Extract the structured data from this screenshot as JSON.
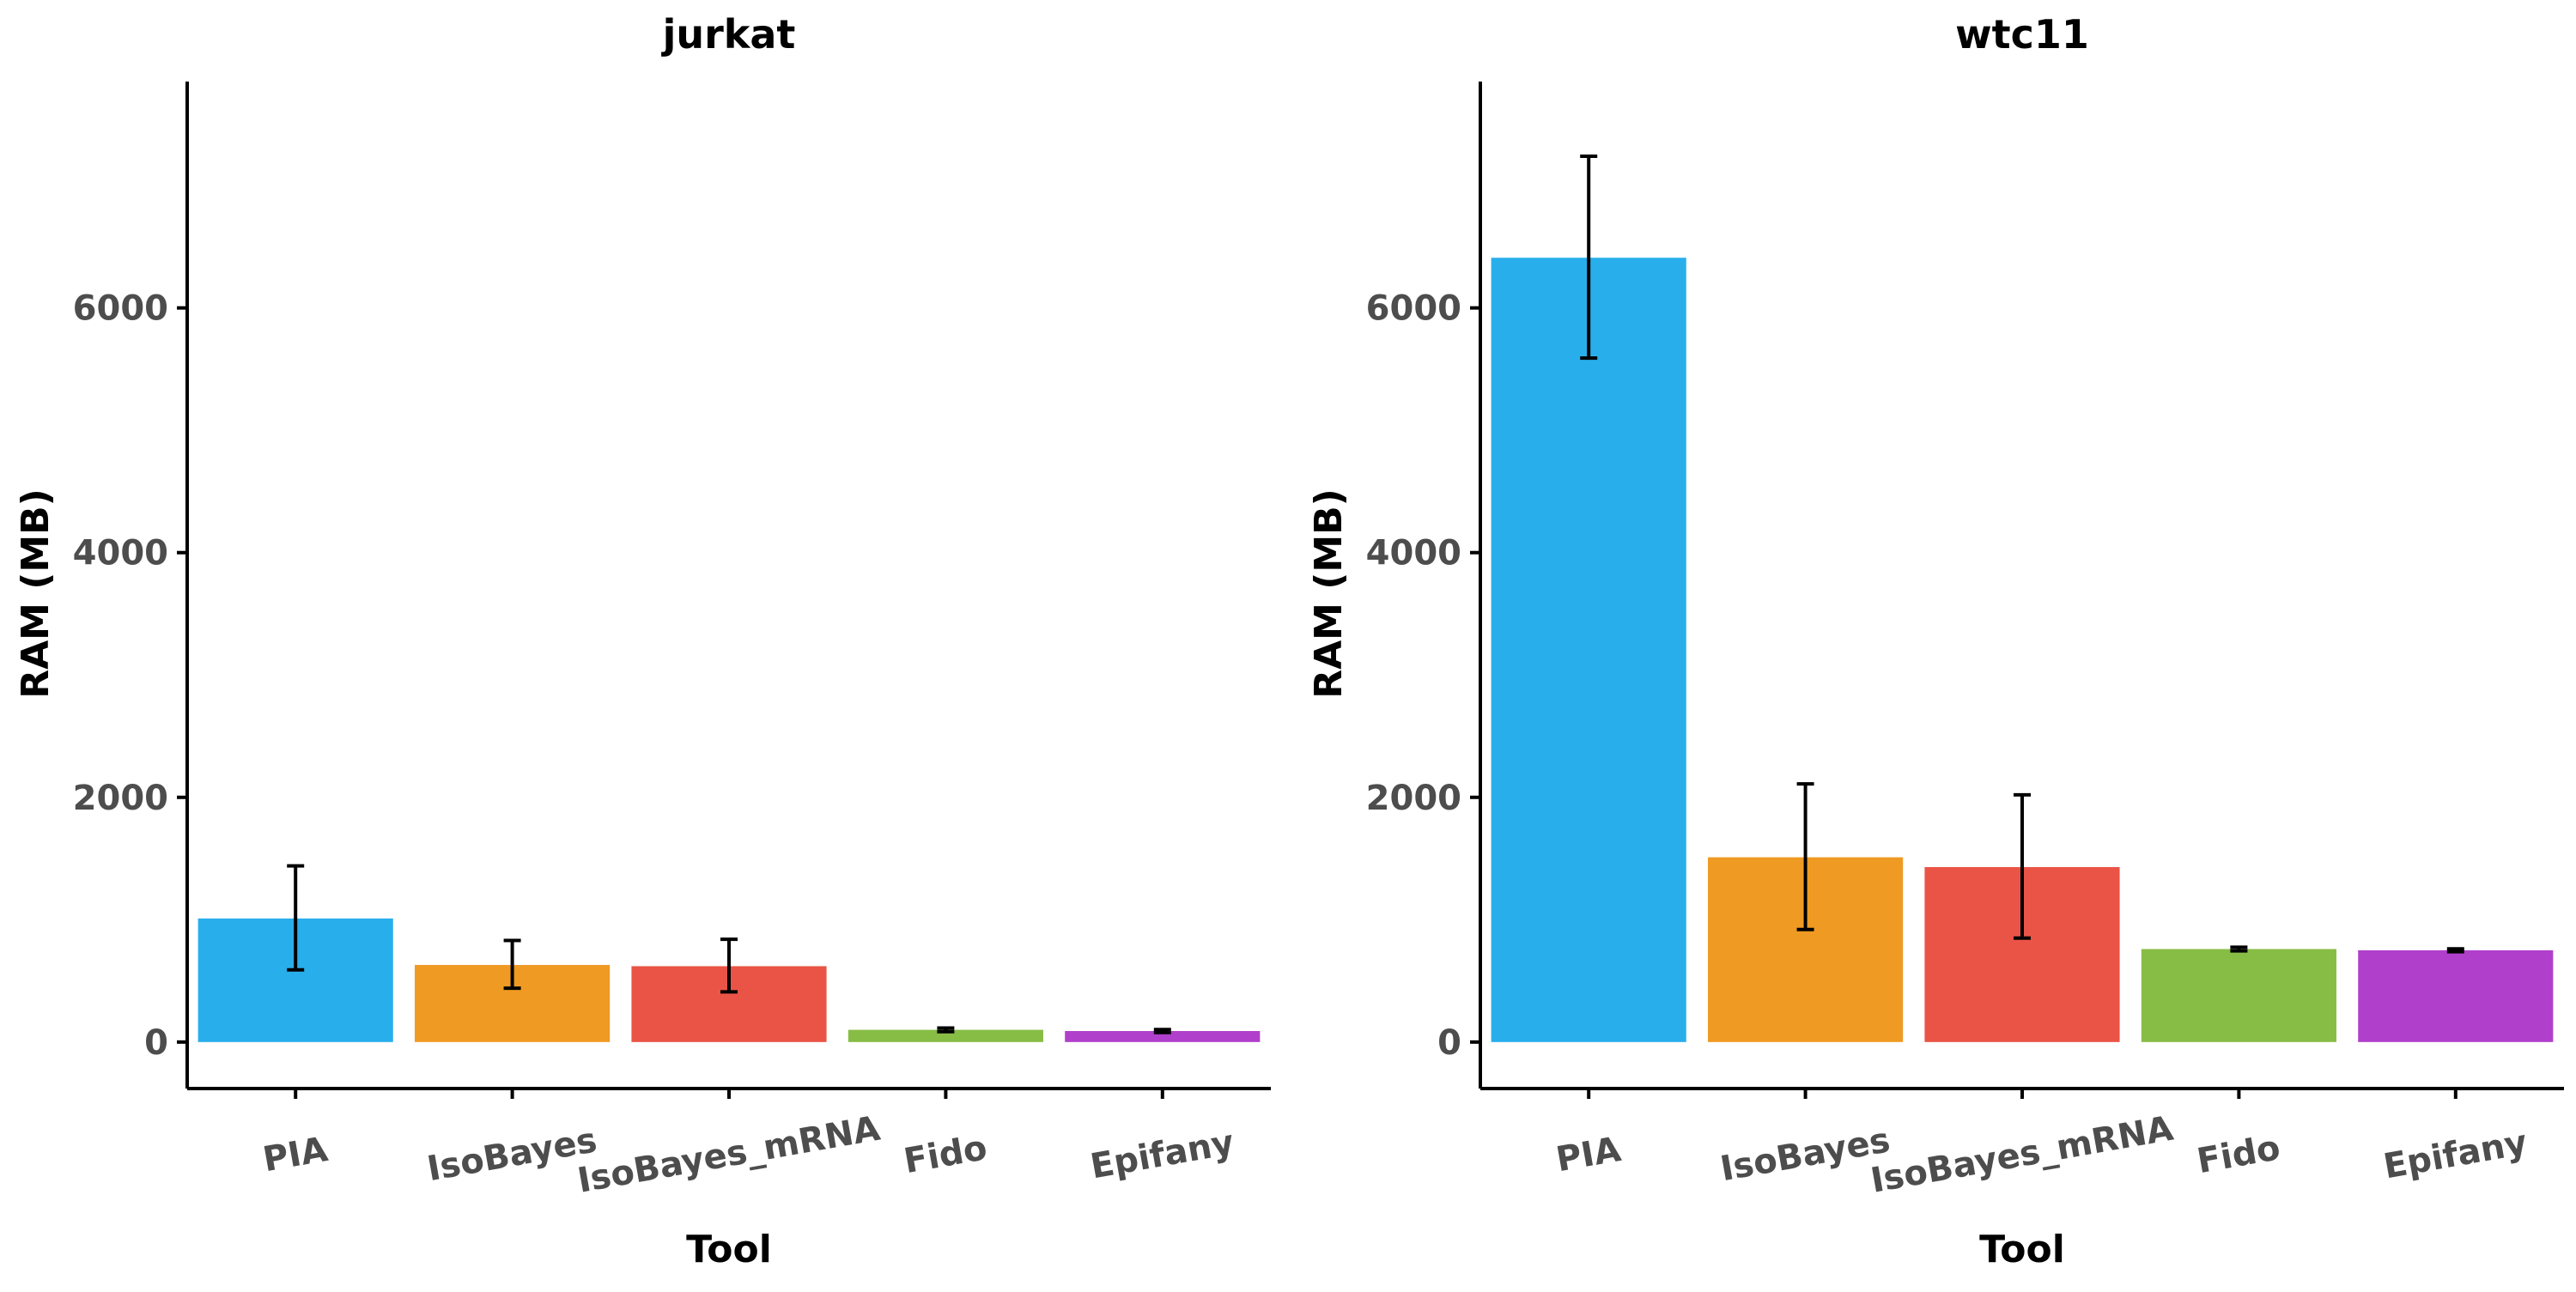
{
  "chart_data": [
    {
      "type": "bar",
      "title": "jurkat",
      "xlabel": "Tool",
      "ylabel": "RAM (MB)",
      "ylim": [
        -380,
        7850
      ],
      "yticks": [
        "0",
        "2000",
        "4000",
        "6000"
      ],
      "ytick_values": [
        0,
        2000,
        4000,
        6000
      ],
      "categories": [
        "PIA",
        "IsoBayes",
        "IsoBayes_mRNA",
        "Fido",
        "Epifany"
      ],
      "values": [
        1010,
        630,
        620,
        100,
        90
      ],
      "error_low": [
        590,
        440,
        410,
        85,
        78
      ],
      "error_high": [
        1440,
        830,
        840,
        115,
        102
      ],
      "colors": [
        "#29aeec",
        "#ef9a22",
        "#ea5446",
        "#87bd45",
        "#b03fcb"
      ],
      "grid": false,
      "legend": "none"
    },
    {
      "type": "bar",
      "title": "wtc11",
      "xlabel": "Tool",
      "ylabel": "RAM (MB)",
      "ylim": [
        -380,
        7850
      ],
      "yticks": [
        "0",
        "2000",
        "4000",
        "6000"
      ],
      "ytick_values": [
        0,
        2000,
        4000,
        6000
      ],
      "categories": [
        "PIA",
        "IsoBayes",
        "IsoBayes_mRNA",
        "Fido",
        "Epifany"
      ],
      "values": [
        6410,
        1510,
        1430,
        760,
        750
      ],
      "error_low": [
        5590,
        920,
        850,
        745,
        738
      ],
      "error_high": [
        7240,
        2110,
        2020,
        775,
        762
      ],
      "colors": [
        "#29aeec",
        "#ef9a22",
        "#ea5446",
        "#87bd45",
        "#b03fcb"
      ],
      "grid": false,
      "legend": "none"
    }
  ]
}
